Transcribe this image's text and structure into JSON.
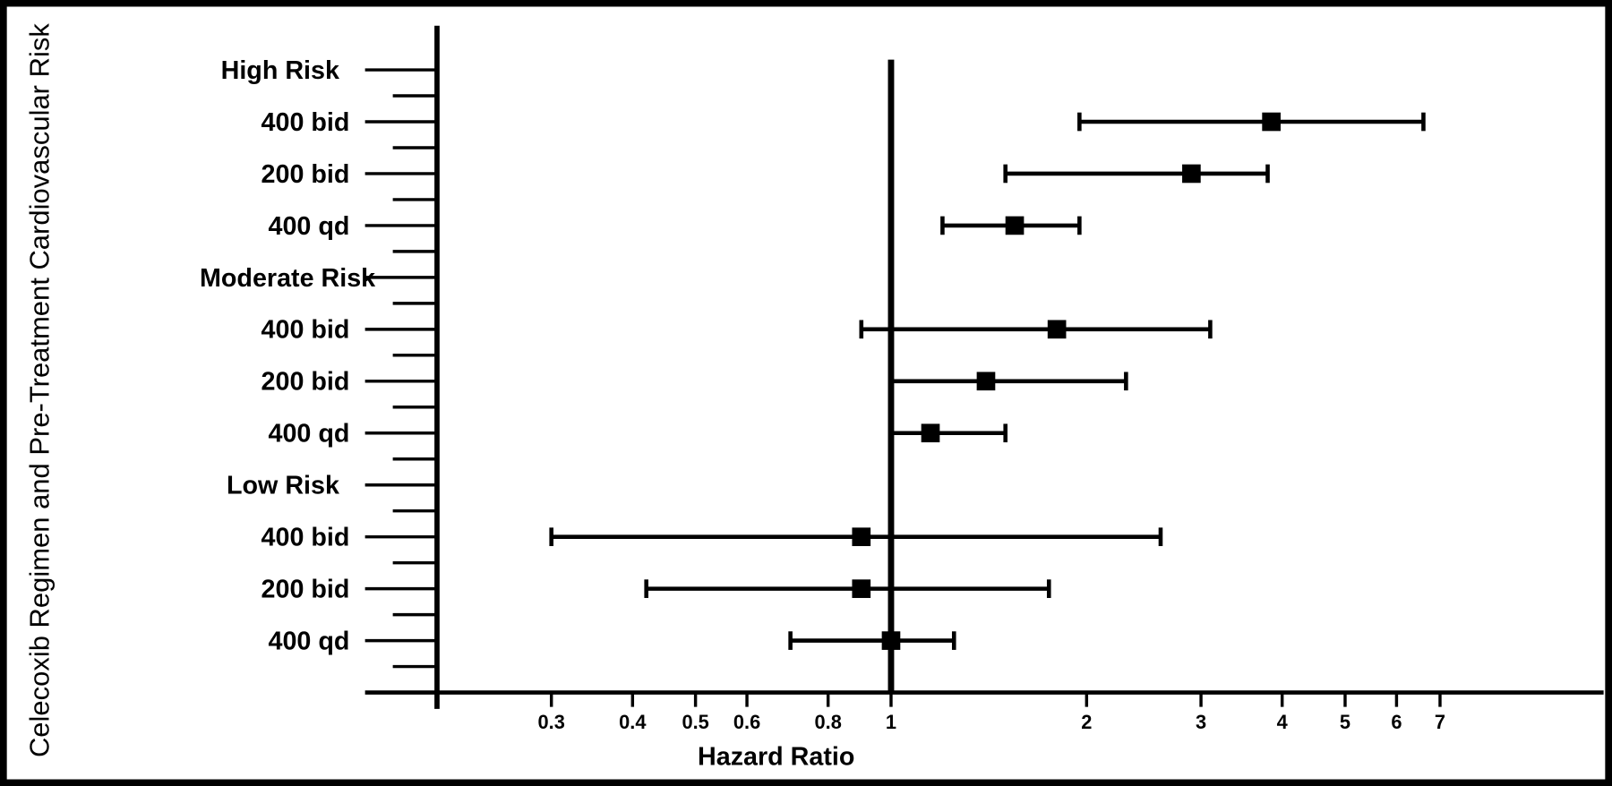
{
  "chart_data": {
    "type": "forest",
    "x_label": "Hazard Ratio",
    "y_label": "Celecoxib Regimen and Pre-Treatment Cardiovascular Risk",
    "categories": [
      "High Risk",
      "400 bid",
      "200 bid",
      "400 qd",
      "Moderate Risk",
      "400 bid",
      "200 bid",
      "400 qd",
      "Low Risk",
      "400 bid",
      "200 bid",
      "400 qd"
    ],
    "series": [
      {
        "color": "#000000",
        "values": [
          null,
          3.85,
          2.9,
          1.55,
          null,
          1.8,
          1.4,
          1.15,
          null,
          0.9,
          0.9,
          1.0
        ],
        "lower": [
          null,
          1.95,
          1.5,
          1.2,
          null,
          0.9,
          1.0,
          1.0,
          null,
          0.3,
          0.42,
          0.7
        ],
        "upper": [
          null,
          6.6,
          3.8,
          1.95,
          null,
          3.1,
          2.3,
          1.5,
          null,
          2.6,
          1.75,
          1.25
        ]
      }
    ],
    "xscale": "log",
    "xlim": [
      0.2,
      12.5
    ],
    "xticks": [
      0.3,
      0.4,
      0.5,
      0.6,
      0.8,
      1,
      2,
      3,
      4,
      5,
      6,
      7
    ],
    "reference_line": 1
  }
}
